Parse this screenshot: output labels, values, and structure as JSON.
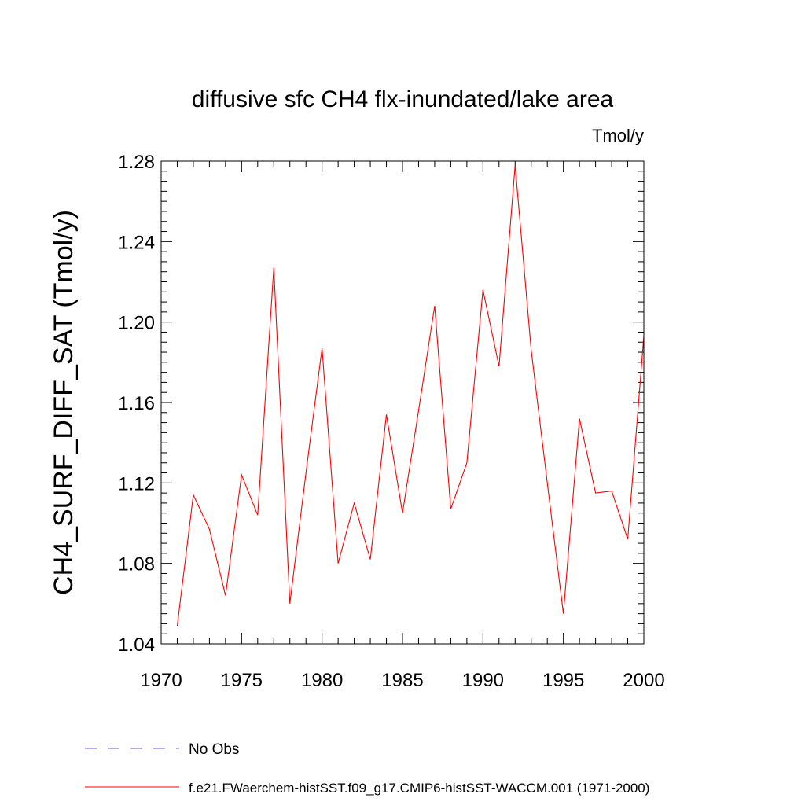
{
  "chart_data": {
    "type": "line",
    "title": "diffusive sfc CH4 flx-inundated/lake area",
    "units_label": "Tmol/y",
    "ylabel": "CH4_SURF_DIFF_SAT  (Tmol/y)",
    "xlabel": "",
    "xlim": [
      1970,
      2000
    ],
    "ylim": [
      1.04,
      1.28
    ],
    "x_ticks": [
      1970,
      1975,
      1980,
      1985,
      1990,
      1995,
      2000
    ],
    "y_ticks": [
      "1.04",
      "1.08",
      "1.12",
      "1.16",
      "1.20",
      "1.24",
      "1.28"
    ],
    "grid": false,
    "series": [
      {
        "name": "f.e21.FWaerchem-histSST.f09_g17.CMIP6-histSST-WACCM.001 (1971-2000)",
        "color": "#ff0000",
        "x": [
          1971,
          1972,
          1973,
          1974,
          1975,
          1976,
          1977,
          1978,
          1979,
          1980,
          1981,
          1982,
          1983,
          1984,
          1985,
          1986,
          1987,
          1988,
          1989,
          1990,
          1991,
          1992,
          1993,
          1994,
          1995,
          1996,
          1997,
          1998,
          1999,
          2000
        ],
        "values": [
          1.049,
          1.114,
          1.097,
          1.064,
          1.124,
          1.104,
          1.227,
          1.06,
          1.125,
          1.187,
          1.08,
          1.11,
          1.082,
          1.154,
          1.105,
          1.156,
          1.208,
          1.107,
          1.13,
          1.216,
          1.178,
          1.278,
          1.186,
          1.12,
          1.055,
          1.152,
          1.115,
          1.116,
          1.092,
          1.193
        ]
      }
    ],
    "legend": {
      "placement": "bottom",
      "entries": [
        {
          "label": "No Obs",
          "color": "#6a5acd",
          "style": "dashed"
        },
        {
          "label": "f.e21.FWaerchem-histSST.f09_g17.CMIP6-histSST-WACCM.001 (1971-2000)",
          "color": "#ff0000",
          "style": "solid"
        }
      ]
    }
  }
}
